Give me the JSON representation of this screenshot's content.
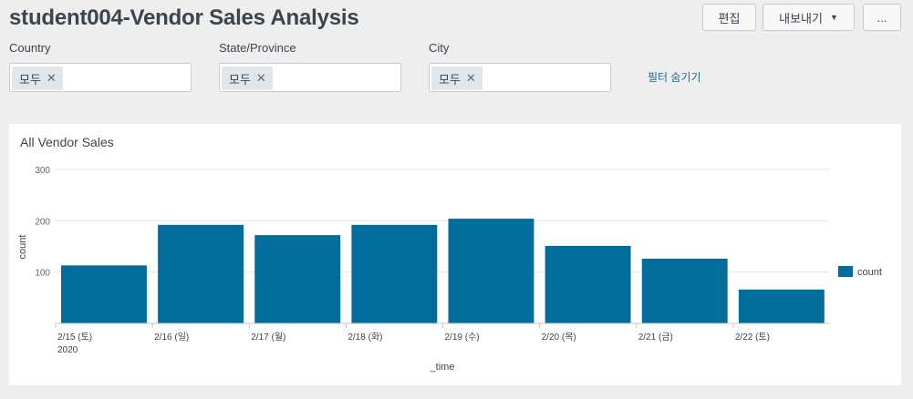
{
  "dashboard": {
    "title": "student004-Vendor Sales Analysis",
    "edit_label": "편집",
    "export_label": "내보내기",
    "more_label": "..."
  },
  "filters": [
    {
      "label": "Country",
      "token": "모두"
    },
    {
      "label": "State/Province",
      "token": "모두"
    },
    {
      "label": "City",
      "token": "모두"
    }
  ],
  "hide_filters_label": "필터 숨기기",
  "panel": {
    "title": "All Vendor Sales"
  },
  "chart_data": {
    "type": "bar",
    "categories": [
      "2/15 (토)",
      "2/16 (일)",
      "2/17 (월)",
      "2/18 (화)",
      "2/19 (수)",
      "2/20 (목)",
      "2/21 (금)",
      "2/22 (토)"
    ],
    "first_category_sublabel": "2020",
    "series": [
      {
        "name": "count",
        "values": [
          113,
          192,
          172,
          192,
          204,
          151,
          126,
          66
        ],
        "color": "#006d9c"
      }
    ],
    "xlabel": "_time",
    "ylabel": "count",
    "ylim": [
      0,
      300
    ],
    "yticks": [
      100,
      200,
      300
    ],
    "grid": true,
    "legend": "right"
  }
}
